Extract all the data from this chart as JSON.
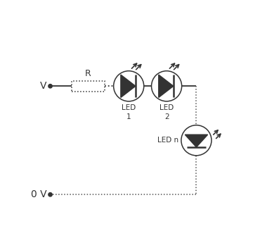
{
  "bg_color": "#ffffff",
  "line_color": "#333333",
  "dot_color": "#555555",
  "led_triangle_color": "#333333",
  "V_label": "V",
  "V0_label": "0 V",
  "R_label": "R",
  "LED1_label": "LED\n1",
  "LED2_label": "LED\n2",
  "LEDn_label": "LED n",
  "fig_width": 3.8,
  "fig_height": 3.45,
  "dpi": 100
}
